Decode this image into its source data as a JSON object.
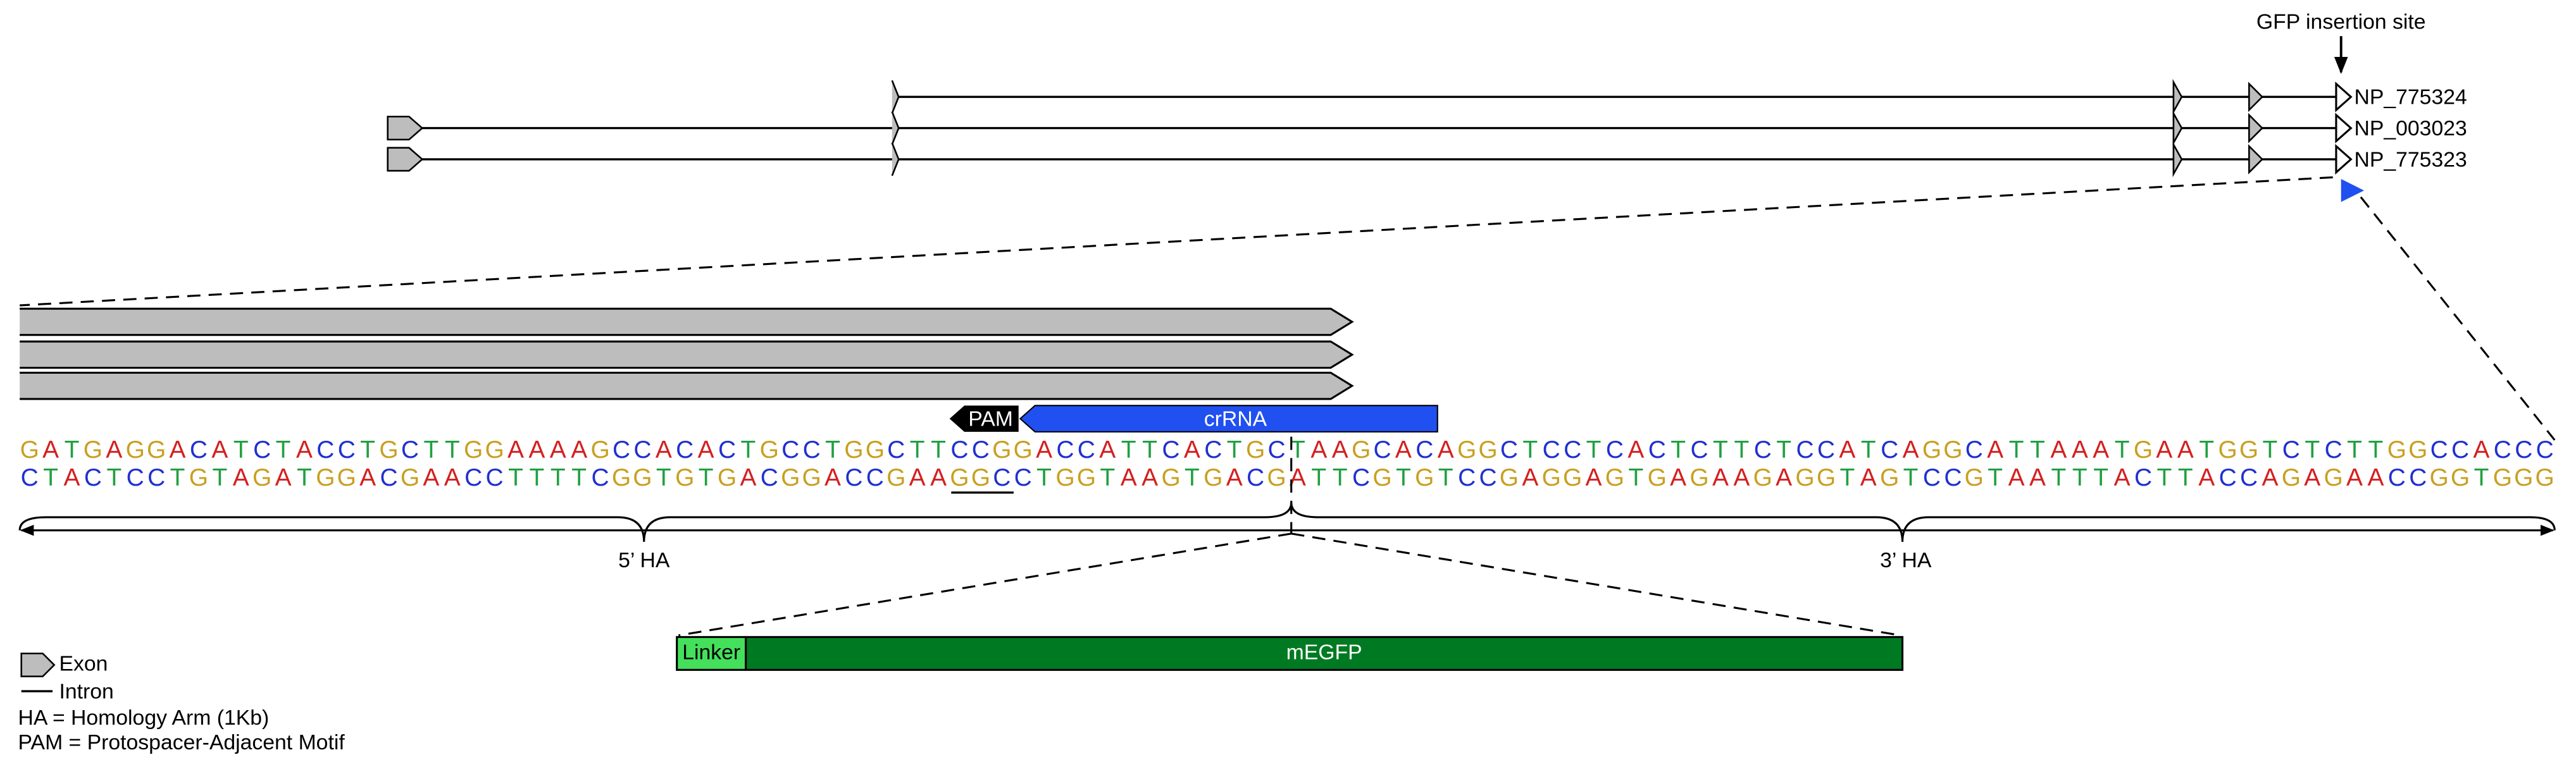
{
  "header": {
    "annotation": "GFP insertion site"
  },
  "transcripts": [
    {
      "label": "NP_775324"
    },
    {
      "label": "NP_003023"
    },
    {
      "label": "NP_775323"
    }
  ],
  "guide": {
    "pam": "PAM",
    "crrna": "crRNA"
  },
  "sequence": {
    "top": "GATGAGGACATCTACCTGCTTGGAAAAGCCACACTGCCTGGCTTCCGGACCATTCACTGCTAAGCACAGGCTCCTCACTCTTCTCCATCAGGCATTAAATGAATGGTCTCTTGGCCACCC",
    "bottom": "CTACTCCTGTAGATGGACGAACCTTTTCGGTGTGACGGACCGAAGGCCTGGTAAGTGACGATTCGTGTCCGAGGAGTGAGAAGAGGTAGTCCGTAATTTACTTACCAGAGAACCGGTGGG"
  },
  "homology_arms": {
    "left": "5’ HA",
    "right": "3’ HA"
  },
  "insert": {
    "linker": "Linker",
    "gene": "mEGFP"
  },
  "legend": {
    "exon": "Exon",
    "intron": "Intron",
    "ha": "HA = Homology Arm (1Kb)",
    "pam": "PAM = Protospacer-Adjacent Motif"
  }
}
